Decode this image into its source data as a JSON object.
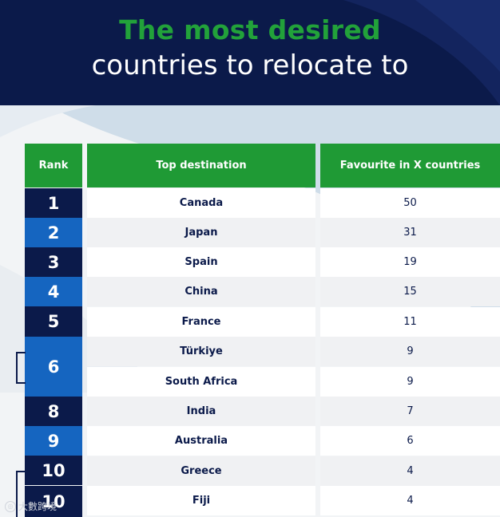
{
  "title": {
    "line1": "The most desired",
    "line2": "countries to relocate to"
  },
  "table": {
    "headers": {
      "rank": "Rank",
      "destination": "Top destination",
      "favourite": "Favourite in X countries"
    },
    "rows": [
      {
        "rank": "1",
        "destination": "Canada",
        "favourite": "50"
      },
      {
        "rank": "2",
        "destination": "Japan",
        "favourite": "31"
      },
      {
        "rank": "3",
        "destination": "Spain",
        "favourite": "19"
      },
      {
        "rank": "4",
        "destination": "China",
        "favourite": "15"
      },
      {
        "rank": "5",
        "destination": "France",
        "favourite": "11"
      },
      {
        "rank": "6",
        "destination": "Türkiye",
        "favourite": "9"
      },
      {
        "rank": "6",
        "destination": "South Africa",
        "favourite": "9"
      },
      {
        "rank": "8",
        "destination": "India",
        "favourite": "7"
      },
      {
        "rank": "9",
        "destination": "Australia",
        "favourite": "6"
      },
      {
        "rank": "10",
        "destination": "Greece",
        "favourite": "4"
      },
      {
        "rank": "10",
        "destination": "Fiji",
        "favourite": "4"
      }
    ]
  },
  "watermark": {
    "text": "大數跨境",
    "icon": "watermark-logo-icon"
  },
  "colors": {
    "header_bg": "#0b1a4a",
    "title_green": "#22a23a",
    "column_header_green": "#1f9a35",
    "rank_dark": "#0b1a4a",
    "rank_blue": "#1565c0"
  }
}
